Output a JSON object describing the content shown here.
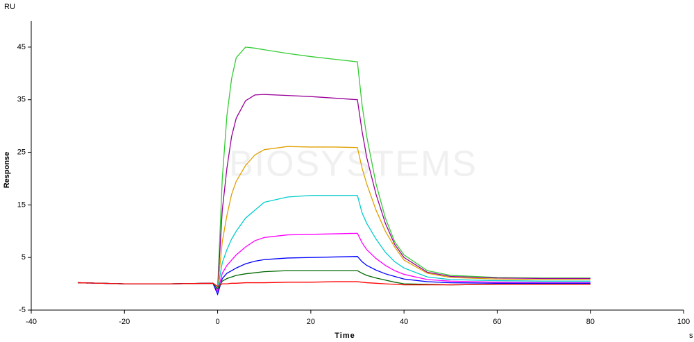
{
  "chart_data": {
    "type": "line",
    "y_unit": "RU",
    "ylabel": "Response",
    "xlabel": "Time",
    "x_unit": "s",
    "watermark": "BIOSYSTEMS",
    "x": [
      -30,
      -20,
      -10,
      -1,
      0,
      1,
      2,
      3,
      4,
      6,
      8,
      10,
      15,
      20,
      25,
      30,
      31,
      32,
      34,
      36,
      38,
      40,
      45,
      50,
      60,
      70,
      80
    ],
    "series": [
      {
        "color": "#33cc33",
        "values": [
          0.2,
          0,
          0,
          0.1,
          -1,
          20,
          32,
          39,
          43,
          45,
          44.8,
          44.5,
          43.8,
          43.2,
          42.7,
          42.2,
          34,
          28,
          19,
          12.5,
          8,
          5.5,
          2.5,
          1.6,
          1.2,
          1.1,
          1.1
        ]
      },
      {
        "color": "#990099",
        "values": [
          0.2,
          0,
          0,
          0.1,
          -1,
          14,
          22,
          28,
          31.5,
          34.8,
          35.9,
          36,
          35.8,
          35.6,
          35.3,
          35,
          29,
          24,
          17,
          11.5,
          7.5,
          5,
          2.2,
          1.4,
          1.1,
          1,
          1
        ]
      },
      {
        "color": "#e0a000",
        "values": [
          0.2,
          0,
          0,
          0.1,
          -1,
          8,
          13,
          17,
          19.5,
          22.5,
          24.5,
          25.5,
          26.1,
          26,
          26,
          25.9,
          22,
          19,
          14,
          10,
          7,
          4.5,
          2,
          1.2,
          0.9,
          0.8,
          0.8
        ]
      },
      {
        "color": "#00cccc",
        "values": [
          0.2,
          0,
          0,
          0.1,
          -1,
          4,
          6.5,
          8.5,
          10,
          12.5,
          14,
          15.5,
          16.5,
          16.8,
          16.8,
          16.8,
          13.5,
          11.5,
          8.5,
          6,
          4.2,
          3,
          1.3,
          0.8,
          0.6,
          0.5,
          0.5
        ]
      },
      {
        "color": "#ff00ff",
        "values": [
          0.2,
          0,
          0,
          0.1,
          -1.5,
          2,
          3.5,
          4.5,
          5.5,
          7,
          8.2,
          8.8,
          9.3,
          9.4,
          9.5,
          9.6,
          7.8,
          6.5,
          4.8,
          3.5,
          2.5,
          1.8,
          0.8,
          0.5,
          0.3,
          0.2,
          0.2
        ]
      },
      {
        "color": "#0000ff",
        "values": [
          0.2,
          0,
          0,
          0.1,
          -2,
          1,
          2,
          2.5,
          3,
          3.8,
          4.3,
          4.6,
          4.9,
          5,
          5.1,
          5.2,
          4.2,
          3.5,
          2.6,
          1.9,
          1.4,
          0.9,
          0.4,
          0.2,
          0.1,
          0.1,
          0.1
        ]
      },
      {
        "color": "#006600",
        "values": [
          0.2,
          0,
          0,
          0.1,
          -1,
          0.5,
          1,
          1.3,
          1.6,
          1.9,
          2.1,
          2.3,
          2.5,
          2.5,
          2.5,
          2.5,
          2,
          1.6,
          1.1,
          0.7,
          0.3,
          0,
          -0.1,
          -0.2,
          -0.1,
          -0.1,
          -0.1
        ]
      },
      {
        "color": "#ff0000",
        "values": [
          0.2,
          0,
          0,
          0.1,
          -0.5,
          0,
          0,
          0.1,
          0.1,
          0.2,
          0.2,
          0.2,
          0.3,
          0.3,
          0.4,
          0.4,
          0.3,
          0.2,
          0.1,
          0,
          -0.1,
          -0.2,
          -0.2,
          -0.2,
          -0.1,
          -0.1,
          -0.1
        ]
      }
    ],
    "xlim": [
      -40,
      100
    ],
    "xticks": [
      -40,
      -20,
      0,
      20,
      40,
      60,
      80,
      100
    ],
    "ylim": [
      -5,
      50
    ],
    "yticks": [
      -5,
      5,
      15,
      25,
      35,
      45
    ]
  }
}
